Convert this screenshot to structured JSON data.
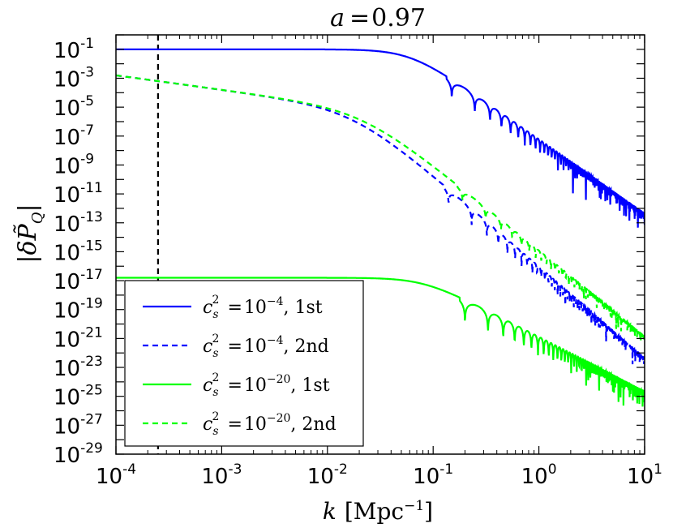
{
  "chart_data": {
    "type": "line",
    "title": "a = 0.97",
    "title_parts": {
      "var": "a",
      "eq": "=",
      "value": "0.97"
    },
    "xlabel": "k [Mpc⁻¹]",
    "xlabel_parts": {
      "var": "k",
      "unit": "[Mpc",
      "exp": "−1",
      "close": "]"
    },
    "ylabel": "|δP̃_Q|",
    "ylabel_parts": {
      "bar": "|",
      "delta": "δ",
      "P": "P̃",
      "sub": "Q"
    },
    "xscale": "log",
    "yscale": "log",
    "xlim_exp": [
      -4,
      1
    ],
    "ylim_exp": [
      -29,
      0
    ],
    "x_ticks": [
      {
        "base": "10",
        "exp": "-4",
        "value": 0.0001
      },
      {
        "base": "10",
        "exp": "-3",
        "value": 0.001
      },
      {
        "base": "10",
        "exp": "-2",
        "value": 0.01
      },
      {
        "base": "10",
        "exp": "-1",
        "value": 0.1
      },
      {
        "base": "10",
        "exp": "0",
        "value": 1
      },
      {
        "base": "10",
        "exp": "1",
        "value": 10
      }
    ],
    "y_ticks": [
      {
        "base": "10",
        "exp": "-1",
        "value": 0.1
      },
      {
        "base": "10",
        "exp": "-3",
        "value": 0.001
      },
      {
        "base": "10",
        "exp": "-5",
        "value": 1e-05
      },
      {
        "base": "10",
        "exp": "-7",
        "value": 1e-07
      },
      {
        "base": "10",
        "exp": "-9",
        "value": 1e-09
      },
      {
        "base": "10",
        "exp": "-11",
        "value": 1e-11
      },
      {
        "base": "10",
        "exp": "-13",
        "value": 1e-13
      },
      {
        "base": "10",
        "exp": "-15",
        "value": 1e-15
      },
      {
        "base": "10",
        "exp": "-17",
        "value": 1e-17
      },
      {
        "base": "10",
        "exp": "-19",
        "value": 1e-19
      },
      {
        "base": "10",
        "exp": "-21",
        "value": 1e-21
      },
      {
        "base": "10",
        "exp": "-23",
        "value": 1e-23
      },
      {
        "base": "10",
        "exp": "-25",
        "value": 1e-25
      },
      {
        "base": "10",
        "exp": "-27",
        "value": 1e-27
      },
      {
        "base": "10",
        "exp": "-29",
        "value": 1e-29
      }
    ],
    "vline_k": 0.00025,
    "legend_placement": "lower-left",
    "series": [
      {
        "id": "s1",
        "name": "c_s^2 = 10^-4, 1st",
        "legend_base": "10",
        "legend_exp": "−4",
        "legend_suffix": ", 1st",
        "color": "#0000ff",
        "dash": "solid",
        "kind": "first",
        "plateau_log": -1.0,
        "k_turn": 0.06,
        "k_first_dip": 0.15,
        "end_log": -12.3,
        "dip_depth": 1.8
      },
      {
        "id": "s2",
        "name": "c_s^2 = 10^-4, 2nd",
        "legend_base": "10",
        "legend_exp": "−4",
        "legend_suffix": ", 2nd",
        "color": "#0000ff",
        "dash": "dashed",
        "kind": "second",
        "start_log": -2.8,
        "k_turn": 0.018,
        "k_first_dip": 0.14,
        "end_log": -22.3,
        "dip_depth": 1.4
      },
      {
        "id": "s3",
        "name": "c_s^2 = 10^-20, 1st",
        "legend_base": "10",
        "legend_exp": "−20",
        "legend_suffix": ", 1st",
        "color": "#00ff00",
        "dash": "solid",
        "kind": "first",
        "plateau_log": -16.8,
        "k_turn": 0.08,
        "k_first_dip": 0.2,
        "end_log": -24.6,
        "dip_depth": 2.2
      },
      {
        "id": "s4",
        "name": "c_s^2 = 10^-20, 2nd",
        "legend_base": "10",
        "legend_exp": "−20",
        "legend_suffix": ", 2nd",
        "color": "#00ff00",
        "dash": "dashed",
        "kind": "second",
        "start_log": -2.8,
        "k_turn": 0.022,
        "k_first_dip": 0.19,
        "end_log": -20.8,
        "dip_depth": 1.2
      }
    ],
    "legend_cs_label": "c",
    "legend_cs_sub": "s",
    "legend_cs_sup": "2",
    "legend_eq": "="
  }
}
